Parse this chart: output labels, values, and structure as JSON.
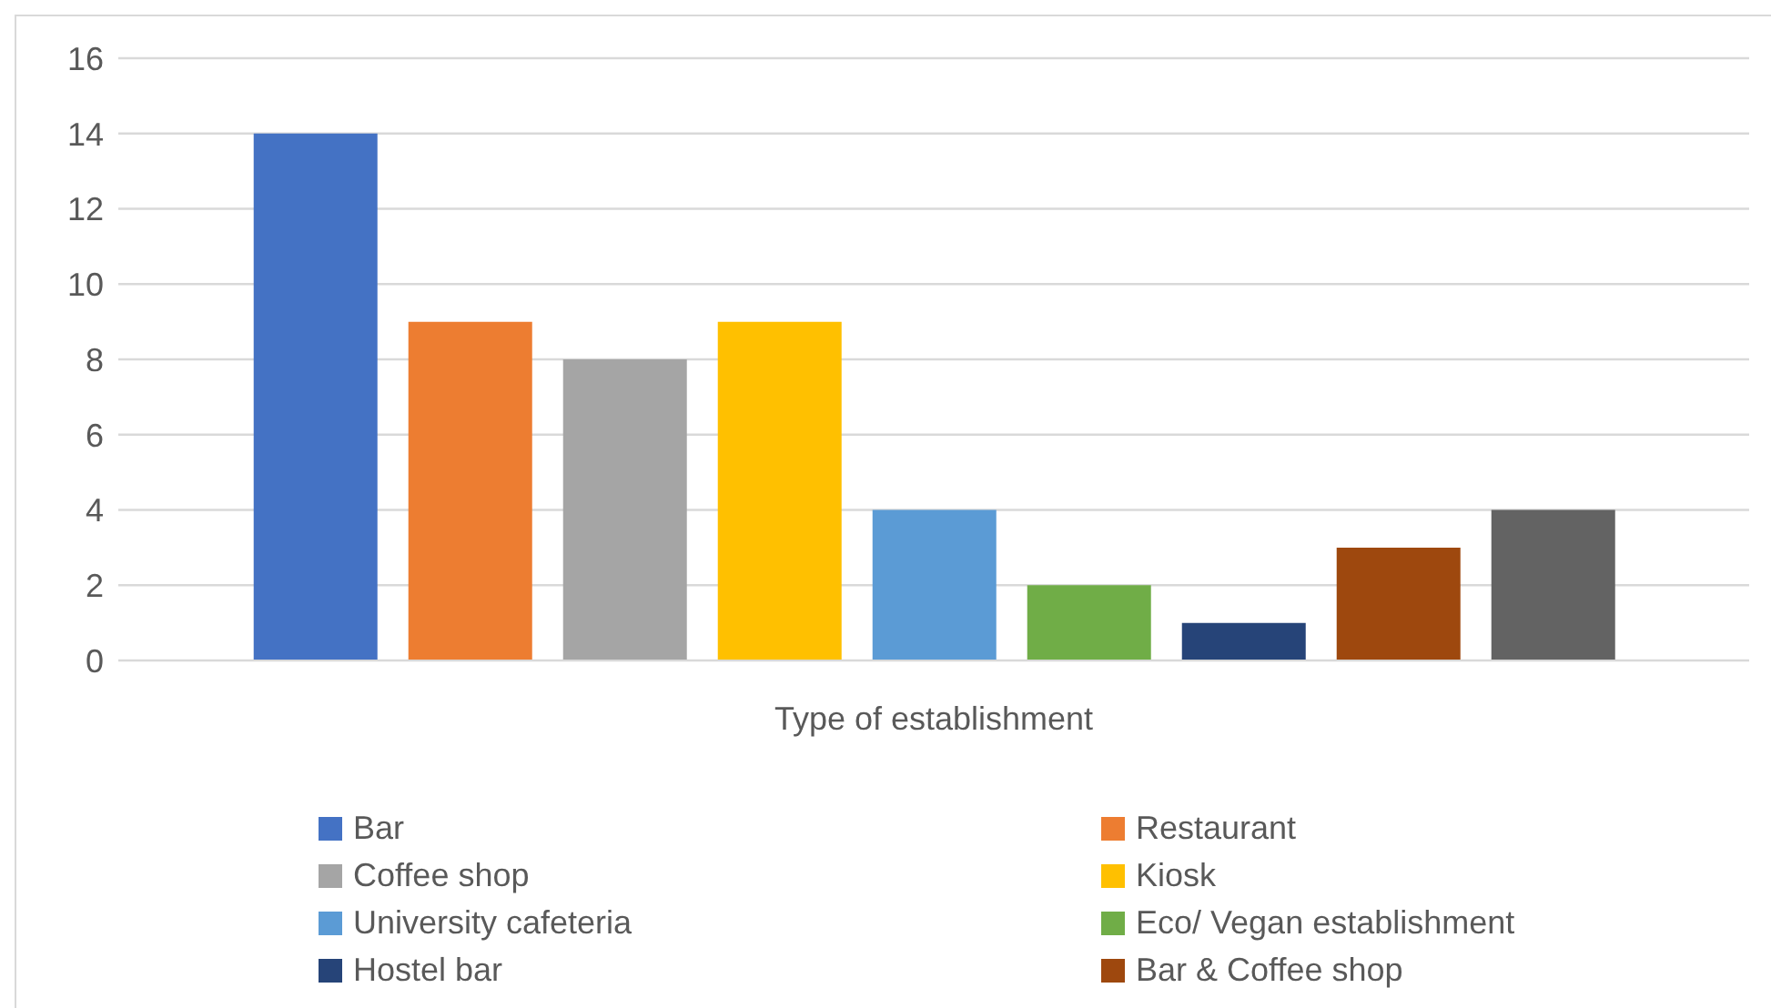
{
  "chart_data": {
    "type": "bar",
    "xlabel": "Type of establishment",
    "categories": [
      null
    ],
    "series": [
      {
        "name": "Bar",
        "color": "#4472c4",
        "values": [
          14
        ]
      },
      {
        "name": "Restaurant",
        "color": "#ed7d31",
        "values": [
          9
        ]
      },
      {
        "name": "Coffee shop",
        "color": "#a5a5a5",
        "values": [
          8
        ]
      },
      {
        "name": "Kiosk",
        "color": "#ffc000",
        "values": [
          9
        ]
      },
      {
        "name": "University cafeteria",
        "color": "#5b9bd5",
        "values": [
          4
        ]
      },
      {
        "name": "Eco/ Vegan establishment",
        "color": "#70ad47",
        "values": [
          2
        ]
      },
      {
        "name": "Hostel bar",
        "color": "#264478",
        "values": [
          1
        ]
      },
      {
        "name": "Bar & Coffee shop",
        "color": "#9e480e",
        "values": [
          3
        ]
      },
      {
        "color": "#636363",
        "values": [
          4
        ]
      }
    ],
    "ylim": [
      0,
      16
    ],
    "yticks": [
      0,
      2,
      4,
      6,
      8,
      10,
      12,
      14,
      16
    ],
    "grid": "y",
    "legend": "bottom"
  }
}
